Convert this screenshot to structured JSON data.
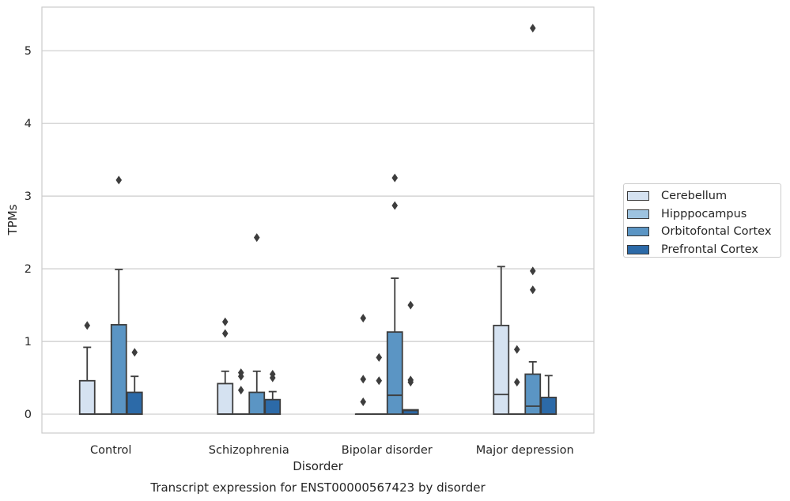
{
  "chart_data": {
    "type": "boxplot",
    "title": "Transcript expression for ENST00000567423 by disorder",
    "xlabel": "Disorder",
    "ylabel": "TPMs",
    "ylim": [
      -0.26,
      5.6
    ],
    "yticks": [
      0,
      1,
      2,
      3,
      4,
      5
    ],
    "grid": "horizontal",
    "legend_position": "right",
    "categories": [
      "Control",
      "Schizophrenia",
      "Bipolar disorder",
      "Major depression"
    ],
    "series": [
      {
        "name": "Cerebellum",
        "color": "#d5e2f1",
        "boxes": [
          {
            "q1": 0,
            "median": 0,
            "q3": 0.46,
            "whislo": 0,
            "whishi": 0.92,
            "fliers": [
              1.22
            ]
          },
          {
            "q1": 0,
            "median": 0,
            "q3": 0.42,
            "whislo": 0,
            "whishi": 0.59,
            "fliers": [
              1.27,
              1.11
            ]
          },
          {
            "q1": 0,
            "median": 0,
            "q3": 0,
            "whislo": 0,
            "whishi": 0,
            "fliers": [
              1.32,
              0.48,
              0.17
            ]
          },
          {
            "q1": 0,
            "median": 0.27,
            "q3": 1.22,
            "whislo": 0,
            "whishi": 2.03,
            "fliers": []
          }
        ]
      },
      {
        "name": "Hipppocampus",
        "color": "#9dc3e0",
        "boxes": [
          {
            "q1": 0,
            "median": 0,
            "q3": 0,
            "whislo": 0,
            "whishi": 0,
            "fliers": []
          },
          {
            "q1": 0,
            "median": 0,
            "q3": 0,
            "whislo": 0,
            "whishi": 0,
            "fliers": [
              0.57,
              0.52,
              0.33
            ]
          },
          {
            "q1": 0,
            "median": 0,
            "q3": 0,
            "whislo": 0,
            "whishi": 0,
            "fliers": [
              0.78,
              0.46
            ]
          },
          {
            "q1": 0,
            "median": 0,
            "q3": 0,
            "whislo": 0,
            "whishi": 0,
            "fliers": [
              0.89,
              0.44
            ]
          }
        ]
      },
      {
        "name": "Orbitofontal Cortex",
        "color": "#5b95c4",
        "boxes": [
          {
            "q1": 0,
            "median": 0,
            "q3": 1.23,
            "whislo": 0,
            "whishi": 1.99,
            "fliers": [
              3.22
            ]
          },
          {
            "q1": 0,
            "median": 0,
            "q3": 0.3,
            "whislo": 0,
            "whishi": 0.59,
            "fliers": [
              2.43
            ]
          },
          {
            "q1": 0,
            "median": 0.26,
            "q3": 1.13,
            "whislo": 0,
            "whishi": 1.87,
            "fliers": [
              3.25,
              2.87
            ]
          },
          {
            "q1": 0,
            "median": 0.11,
            "q3": 0.55,
            "whislo": 0,
            "whishi": 0.72,
            "fliers": [
              5.31,
              1.97,
              1.71
            ]
          }
        ]
      },
      {
        "name": "Prefrontal Cortex",
        "color": "#2c6aa8",
        "boxes": [
          {
            "q1": 0,
            "median": 0,
            "q3": 0.3,
            "whislo": 0,
            "whishi": 0.52,
            "fliers": [
              0.85
            ]
          },
          {
            "q1": 0,
            "median": 0,
            "q3": 0.2,
            "whislo": 0,
            "whishi": 0.31,
            "fliers": [
              0.55,
              0.5
            ]
          },
          {
            "q1": 0,
            "median": 0.05,
            "q3": 0.06,
            "whislo": 0,
            "whishi": 0.06,
            "fliers": [
              1.5,
              0.47,
              0.44
            ]
          },
          {
            "q1": 0,
            "median": 0,
            "q3": 0.23,
            "whislo": 0,
            "whishi": 0.53,
            "fliers": []
          }
        ]
      }
    ]
  }
}
